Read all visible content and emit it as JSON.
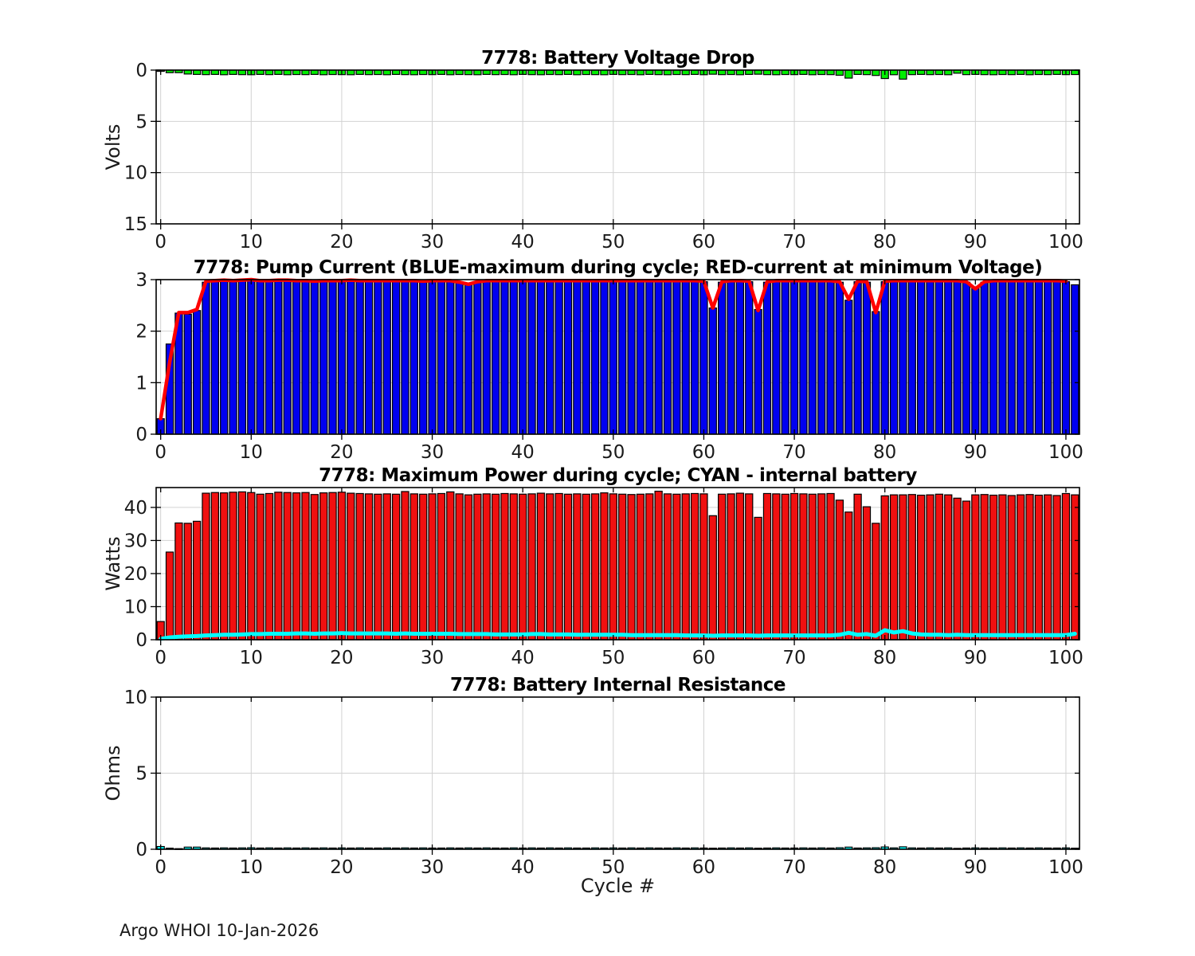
{
  "figure": {
    "footer": "Argo WHOI 10-Jan-2026",
    "background": "#ffffff"
  },
  "chart_data": [
    {
      "id": "battery-voltage-drop",
      "type": "bar",
      "title": "7778: Battery Voltage Drop",
      "ylabel": "Volts",
      "xlabel": "",
      "bar_color": "#00EE00",
      "bar_edge": "#000000",
      "xlim": [
        -0.5,
        101.5
      ],
      "ylim": [
        0,
        15
      ],
      "y_reversed": true,
      "grid": true,
      "x_ticks": [
        0,
        10,
        20,
        30,
        40,
        50,
        60,
        70,
        80,
        90,
        100
      ],
      "y_ticks": [
        0,
        5,
        10,
        15
      ],
      "values": [
        0.12,
        0.25,
        0.25,
        0.38,
        0.42,
        0.44,
        0.42,
        0.45,
        0.42,
        0.44,
        0.45,
        0.42,
        0.44,
        0.42,
        0.45,
        0.43,
        0.44,
        0.42,
        0.45,
        0.43,
        0.44,
        0.45,
        0.42,
        0.44,
        0.43,
        0.45,
        0.42,
        0.44,
        0.45,
        0.43,
        0.44,
        0.42,
        0.45,
        0.43,
        0.44,
        0.45,
        0.42,
        0.44,
        0.43,
        0.45,
        0.42,
        0.44,
        0.45,
        0.43,
        0.44,
        0.42,
        0.45,
        0.43,
        0.44,
        0.45,
        0.42,
        0.44,
        0.43,
        0.45,
        0.42,
        0.44,
        0.45,
        0.43,
        0.44,
        0.42,
        0.45,
        0.4,
        0.44,
        0.43,
        0.45,
        0.42,
        0.4,
        0.44,
        0.45,
        0.43,
        0.44,
        0.42,
        0.45,
        0.43,
        0.44,
        0.5,
        0.78,
        0.42,
        0.44,
        0.52,
        0.82,
        0.45,
        0.88,
        0.44,
        0.42,
        0.44,
        0.43,
        0.45,
        0.3,
        0.44,
        0.42,
        0.44,
        0.45,
        0.43,
        0.44,
        0.42,
        0.45,
        0.43,
        0.44,
        0.42,
        0.44,
        0.43
      ]
    },
    {
      "id": "pump-current",
      "type": "bar+line",
      "title": "7778: Pump Current (BLUE-maximum during cycle; RED-current at minimum Voltage)",
      "ylabel": "",
      "xlabel": "",
      "bar_color": "#0000F0",
      "bar_edge": "#000000",
      "xlim": [
        -0.5,
        101.5
      ],
      "ylim": [
        0,
        3
      ],
      "y_reversed": false,
      "grid": true,
      "x_ticks": [
        0,
        10,
        20,
        30,
        40,
        50,
        60,
        70,
        80,
        90,
        100
      ],
      "y_ticks": [
        0,
        1,
        2,
        3
      ],
      "values": [
        0.3,
        1.75,
        2.35,
        2.33,
        2.4,
        2.95,
        2.96,
        2.97,
        2.96,
        2.98,
        3.0,
        2.97,
        2.96,
        2.97,
        2.98,
        2.96,
        2.97,
        2.95,
        2.96,
        2.97,
        2.96,
        2.98,
        2.96,
        2.97,
        2.96,
        2.97,
        2.96,
        2.97,
        2.96,
        2.95,
        2.96,
        2.97,
        2.96,
        2.94,
        2.92,
        2.95,
        2.96,
        2.97,
        2.96,
        2.97,
        2.96,
        2.97,
        2.96,
        2.97,
        2.96,
        2.97,
        2.96,
        2.97,
        2.96,
        2.97,
        2.96,
        2.97,
        2.96,
        2.97,
        2.96,
        2.97,
        2.96,
        2.97,
        2.96,
        2.97,
        2.96,
        2.45,
        2.95,
        2.96,
        2.97,
        2.96,
        2.42,
        2.95,
        2.96,
        2.97,
        2.96,
        2.97,
        2.96,
        2.97,
        2.96,
        2.95,
        2.6,
        2.96,
        2.95,
        2.38,
        2.96,
        2.97,
        2.96,
        2.97,
        2.96,
        2.97,
        2.96,
        2.97,
        2.96,
        2.95,
        2.85,
        2.95,
        2.96,
        2.97,
        2.96,
        2.97,
        2.96,
        2.97,
        2.96,
        2.97,
        2.96,
        2.9
      ],
      "lines": [
        {
          "name": "current-at-min-voltage",
          "color": "#FF0000",
          "width": 4.5,
          "values": [
            0.3,
            1.4,
            2.36,
            2.36,
            2.42,
            2.97,
            2.98,
            2.99,
            2.98,
            2.99,
            3.0,
            2.98,
            2.98,
            2.99,
            2.99,
            2.98,
            2.98,
            2.97,
            2.98,
            2.98,
            2.98,
            2.99,
            2.98,
            2.98,
            2.98,
            2.98,
            2.98,
            2.98,
            2.98,
            2.97,
            2.98,
            2.98,
            2.98,
            2.95,
            2.91,
            2.96,
            2.98,
            2.98,
            2.98,
            2.98,
            2.98,
            2.98,
            2.98,
            2.98,
            2.98,
            2.98,
            2.98,
            2.98,
            2.98,
            2.98,
            2.98,
            2.98,
            2.98,
            2.98,
            2.98,
            2.98,
            2.98,
            2.98,
            2.98,
            2.98,
            2.97,
            2.45,
            2.96,
            2.98,
            2.98,
            2.97,
            2.4,
            2.96,
            2.98,
            2.98,
            2.98,
            2.98,
            2.98,
            2.98,
            2.98,
            2.96,
            2.62,
            2.97,
            2.96,
            2.36,
            2.97,
            2.98,
            2.98,
            2.98,
            2.98,
            2.98,
            2.98,
            2.98,
            2.98,
            2.96,
            2.82,
            2.96,
            2.98,
            2.98,
            2.98,
            2.98,
            2.98,
            2.98,
            2.98,
            2.98,
            2.97
          ]
        }
      ]
    },
    {
      "id": "max-power",
      "type": "bar+line",
      "title": "7778: Maximum Power during cycle; CYAN - internal battery",
      "ylabel": "Watts",
      "xlabel": "",
      "bar_color": "#F01010",
      "bar_edge": "#000000",
      "xlim": [
        -0.5,
        101.5
      ],
      "ylim": [
        0,
        46
      ],
      "y_reversed": false,
      "grid": true,
      "x_ticks": [
        0,
        10,
        20,
        30,
        40,
        50,
        60,
        70,
        80,
        90,
        100
      ],
      "y_ticks": [
        0,
        10,
        20,
        30,
        40
      ],
      "values": [
        5.5,
        26.5,
        35.3,
        35.2,
        35.8,
        44.3,
        44.5,
        44.4,
        44.6,
        44.7,
        44.5,
        44.0,
        44.2,
        44.6,
        44.5,
        44.4,
        44.5,
        43.9,
        44.4,
        44.5,
        44.6,
        44.3,
        44.2,
        44.1,
        44.0,
        44.1,
        44.0,
        44.8,
        44.1,
        44.0,
        44.1,
        44.2,
        44.7,
        44.1,
        43.8,
        44.0,
        44.1,
        44.0,
        44.2,
        44.1,
        44.0,
        44.1,
        44.3,
        44.1,
        44.2,
        44.0,
        44.1,
        44.0,
        44.1,
        44.4,
        44.1,
        44.0,
        43.9,
        44.0,
        44.1,
        44.9,
        44.1,
        44.0,
        44.1,
        44.2,
        44.1,
        37.5,
        44.0,
        44.1,
        44.3,
        44.1,
        37.0,
        44.2,
        44.1,
        44.0,
        44.2,
        44.1,
        44.0,
        44.1,
        44.2,
        42.2,
        38.6,
        44.0,
        40.2,
        35.2,
        43.5,
        43.8,
        43.8,
        43.9,
        43.7,
        43.8,
        44.0,
        43.8,
        42.8,
        41.9,
        43.8,
        43.9,
        43.7,
        43.8,
        43.6,
        43.8,
        43.9,
        43.7,
        43.8,
        43.6,
        44.2,
        43.8
      ],
      "lines": [
        {
          "name": "internal-battery-power",
          "color": "#00FFFF",
          "width": 5,
          "values": [
            0.3,
            0.7,
            0.9,
            1.0,
            1.1,
            1.3,
            1.4,
            1.5,
            1.5,
            1.6,
            1.7,
            1.7,
            1.8,
            1.8,
            1.8,
            1.9,
            1.9,
            1.8,
            1.9,
            1.9,
            2.0,
            1.9,
            1.9,
            1.9,
            1.9,
            1.9,
            1.8,
            1.9,
            1.8,
            1.8,
            1.8,
            1.8,
            1.8,
            1.7,
            1.7,
            1.7,
            1.7,
            1.6,
            1.6,
            1.6,
            1.6,
            1.7,
            1.7,
            1.6,
            1.6,
            1.6,
            1.5,
            1.5,
            1.5,
            1.5,
            1.5,
            1.5,
            1.4,
            1.4,
            1.4,
            1.4,
            1.4,
            1.4,
            1.3,
            1.3,
            1.3,
            1.2,
            1.3,
            1.3,
            1.3,
            1.3,
            1.2,
            1.3,
            1.3,
            1.3,
            1.3,
            1.3,
            1.3,
            1.3,
            1.3,
            1.5,
            2.1,
            1.5,
            1.7,
            1.2,
            2.9,
            2.2,
            2.6,
            1.9,
            1.6,
            1.5,
            1.5,
            1.4,
            1.5,
            1.4,
            1.4,
            1.4,
            1.4,
            1.4,
            1.4,
            1.4,
            1.4,
            1.4,
            1.4,
            1.4,
            1.4,
            1.8
          ]
        }
      ]
    },
    {
      "id": "battery-internal-resistance",
      "type": "bar",
      "title": "7778: Battery Internal Resistance",
      "ylabel": "Ohms",
      "xlabel": "Cycle #",
      "bar_color": "#00FFFF",
      "bar_edge": "#000000",
      "xlim": [
        -0.5,
        101.5
      ],
      "ylim": [
        0,
        10
      ],
      "y_reversed": false,
      "grid": true,
      "x_ticks": [
        0,
        10,
        20,
        30,
        40,
        50,
        60,
        70,
        80,
        90,
        100
      ],
      "y_ticks": [
        0,
        5,
        10
      ],
      "values": [
        0.18,
        0.07,
        0.04,
        0.14,
        0.14,
        0.09,
        0.08,
        0.09,
        0.08,
        0.09,
        0.1,
        0.08,
        0.09,
        0.08,
        0.09,
        0.08,
        0.09,
        0.08,
        0.09,
        0.08,
        0.09,
        0.08,
        0.09,
        0.08,
        0.08,
        0.09,
        0.08,
        0.09,
        0.08,
        0.09,
        0.08,
        0.08,
        0.09,
        0.08,
        0.09,
        0.08,
        0.09,
        0.08,
        0.08,
        0.09,
        0.08,
        0.09,
        0.08,
        0.09,
        0.08,
        0.09,
        0.08,
        0.08,
        0.09,
        0.08,
        0.09,
        0.08,
        0.09,
        0.08,
        0.09,
        0.08,
        0.08,
        0.09,
        0.08,
        0.09,
        0.08,
        0.07,
        0.08,
        0.09,
        0.08,
        0.09,
        0.07,
        0.08,
        0.09,
        0.08,
        0.08,
        0.09,
        0.08,
        0.09,
        0.08,
        0.1,
        0.14,
        0.08,
        0.09,
        0.1,
        0.15,
        0.09,
        0.16,
        0.09,
        0.08,
        0.09,
        0.08,
        0.09,
        0.06,
        0.08,
        0.09,
        0.08,
        0.08,
        0.09,
        0.08,
        0.09,
        0.08,
        0.09,
        0.08,
        0.08,
        0.09,
        0.07
      ]
    }
  ]
}
